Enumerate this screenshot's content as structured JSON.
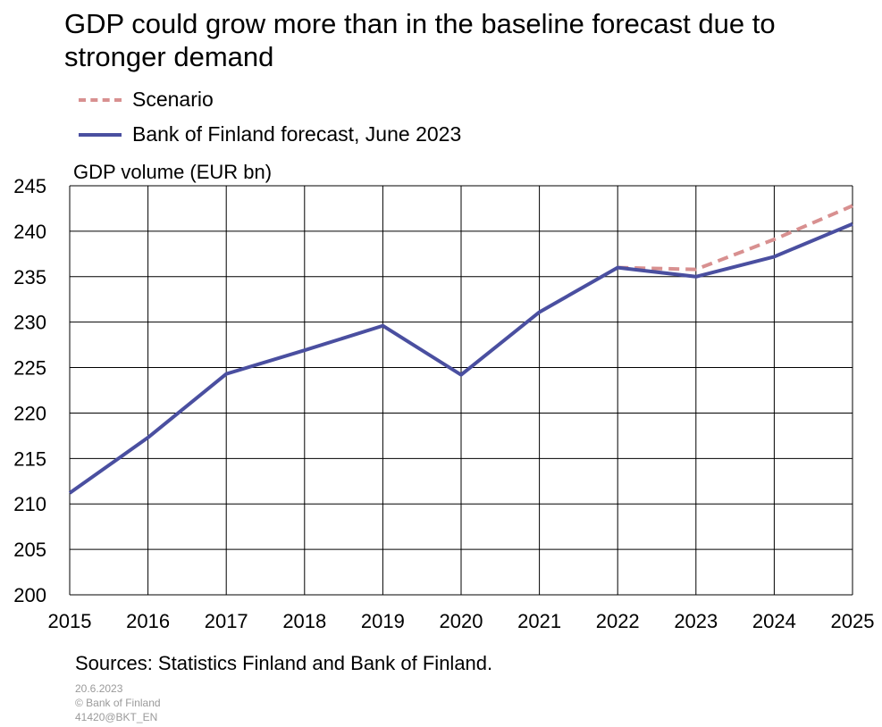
{
  "title": "GDP could grow more than in the baseline forecast due to stronger demand",
  "legend": [
    {
      "label": "Scenario",
      "style": "dashed",
      "color": "#d89090"
    },
    {
      "label": "Bank of Finland forecast, June 2023",
      "style": "solid",
      "color": "#4a4fa0"
    }
  ],
  "sources": "Sources: Statistics Finland and Bank of Finland.",
  "footer": {
    "date": "20.6.2023",
    "copyright": "© Bank of Finland",
    "code": "41420@BKT_EN"
  },
  "chart_data": {
    "type": "line",
    "title": "GDP could grow more than in the baseline forecast due to stronger demand",
    "ylabel": "GDP volume (EUR bn)",
    "xlabel": "",
    "x": [
      2015,
      2016,
      2017,
      2018,
      2019,
      2020,
      2021,
      2022,
      2023,
      2024,
      2025
    ],
    "xlim": [
      2015,
      2025
    ],
    "ylim": [
      200,
      245
    ],
    "yticks": [
      200,
      205,
      210,
      215,
      220,
      225,
      230,
      235,
      240,
      245
    ],
    "grid": true,
    "legend_position": "top-left",
    "series": [
      {
        "name": "Scenario",
        "style": "dashed",
        "color": "#d89090",
        "x": [
          2022,
          2023,
          2024,
          2025
        ],
        "values": [
          236.0,
          235.8,
          239.1,
          242.8
        ]
      },
      {
        "name": "Bank of Finland forecast, June 2023",
        "style": "solid",
        "color": "#4a4fa0",
        "x": [
          2015,
          2016,
          2017,
          2018,
          2019,
          2020,
          2021,
          2022,
          2023,
          2024,
          2025
        ],
        "values": [
          211.2,
          217.3,
          224.3,
          226.9,
          229.6,
          224.2,
          231.1,
          236.0,
          235.0,
          237.2,
          240.8
        ]
      }
    ]
  }
}
